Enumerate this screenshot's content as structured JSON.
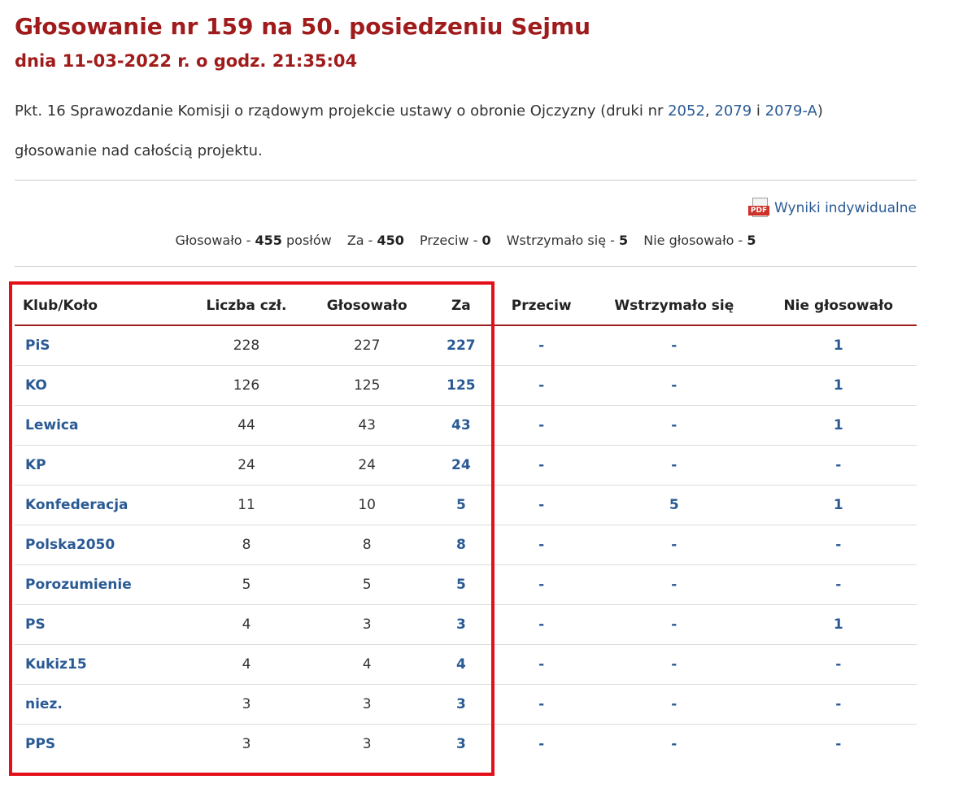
{
  "header": {
    "title": "Głosowanie nr 159 na 50. posiedzeniu Sejmu",
    "subtitle": "dnia 11-03-2022 r. o godz. 21:35:04"
  },
  "agenda": {
    "prefix": "Pkt. 16 Sprawozdanie Komisji o rządowym projekcie ustawy o obronie Ojczyzny (druki nr ",
    "link1": "2052",
    "sep1": ", ",
    "link2": "2079",
    "sep2": " i ",
    "link3": "2079-A",
    "suffix": ")"
  },
  "vote_description": "głosowanie nad całością projektu.",
  "pdf": {
    "icon": "pdf-icon",
    "icon_text": "PDF",
    "label": "Wyniki indywidualne"
  },
  "summary": {
    "voted_label": "Głosowało - ",
    "voted": "455",
    "voted_unit": " posłów",
    "for_label": "Za - ",
    "for": "450",
    "against_label": "Przeciw - ",
    "against": "0",
    "abstain_label": "Wstrzymało się - ",
    "abstain": "5",
    "not_voted_label": "Nie głosowało - ",
    "not_voted": "5"
  },
  "table": {
    "headers": [
      "Klub/Koło",
      "Liczba czł.",
      "Głosowało",
      "Za",
      "Przeciw",
      "Wstrzymało się",
      "Nie głosowało"
    ],
    "rows": [
      [
        "PiS",
        "228",
        "227",
        "227",
        "-",
        "-",
        "1"
      ],
      [
        "KO",
        "126",
        "125",
        "125",
        "-",
        "-",
        "1"
      ],
      [
        "Lewica",
        "44",
        "43",
        "43",
        "-",
        "-",
        "1"
      ],
      [
        "KP",
        "24",
        "24",
        "24",
        "-",
        "-",
        "-"
      ],
      [
        "Konfederacja",
        "11",
        "10",
        "5",
        "-",
        "5",
        "1"
      ],
      [
        "Polska2050",
        "8",
        "8",
        "8",
        "-",
        "-",
        "-"
      ],
      [
        "Porozumienie",
        "5",
        "5",
        "5",
        "-",
        "-",
        "-"
      ],
      [
        "PS",
        "4",
        "3",
        "3",
        "-",
        "-",
        "1"
      ],
      [
        "Kukiz15",
        "4",
        "4",
        "4",
        "-",
        "-",
        "-"
      ],
      [
        "niez.",
        "3",
        "3",
        "3",
        "-",
        "-",
        "-"
      ],
      [
        "PPS",
        "3",
        "3",
        "3",
        "-",
        "-",
        "-"
      ]
    ]
  },
  "colors": {
    "title": "#a01c1c",
    "link": "#2a5a94",
    "highlight_box": "#e3101a",
    "header_rule": "#a01c1c"
  }
}
